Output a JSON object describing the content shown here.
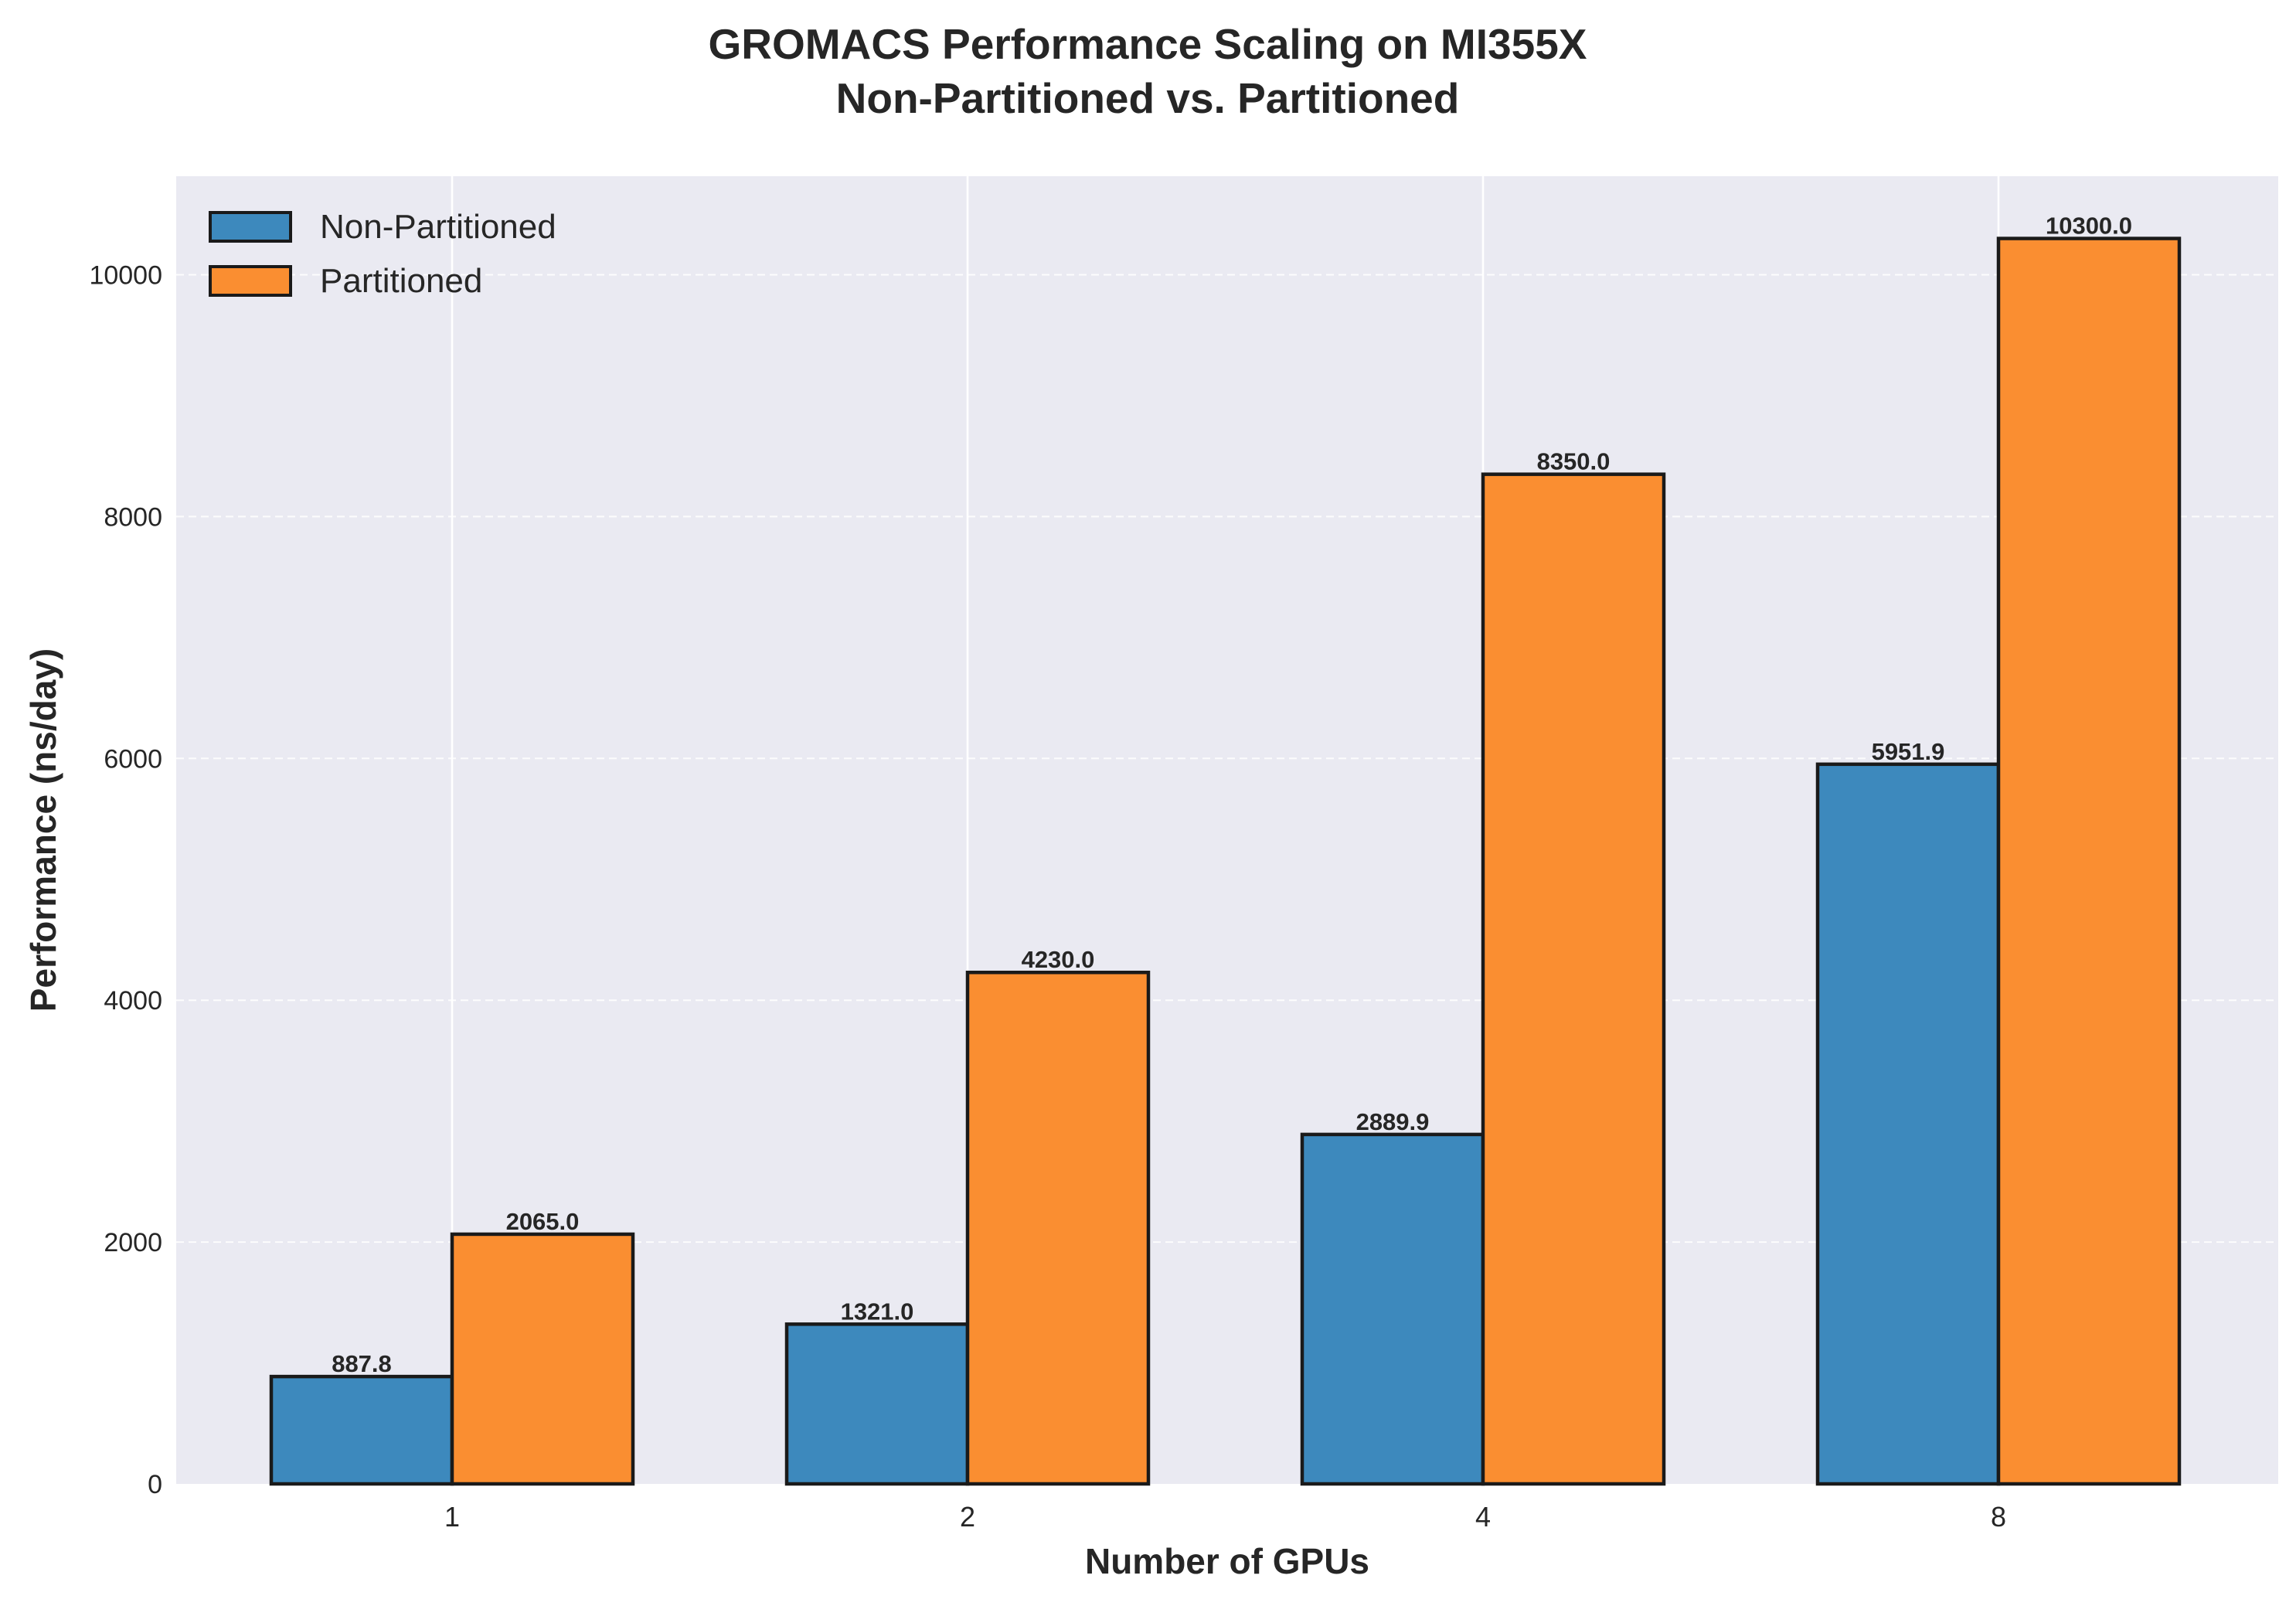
{
  "chart_data": {
    "type": "bar",
    "title_line1": "GROMACS Performance Scaling on MI355X",
    "title_line2": "Non-Partitioned vs. Partitioned",
    "xlabel": "Number of GPUs",
    "ylabel": "Performance (ns/day)",
    "categories": [
      "1",
      "2",
      "4",
      "8"
    ],
    "series": [
      {
        "name": "Non-Partitioned",
        "color": "#3d89bd",
        "values": [
          887.8,
          1321.0,
          2889.9,
          5951.9
        ],
        "labels": [
          "887.8",
          "1321.0",
          "2889.9",
          "5951.9"
        ]
      },
      {
        "name": "Partitioned",
        "color": "#fa8e31",
        "values": [
          2065.0,
          4230.0,
          8350.0,
          10300.0
        ],
        "labels": [
          "2065.0",
          "4230.0",
          "8350.0",
          "10300.0"
        ]
      }
    ],
    "ylim": [
      0,
      10815
    ],
    "yticks": [
      0,
      2000,
      4000,
      6000,
      8000,
      10000
    ],
    "ytick_labels": [
      "0",
      "2000",
      "4000",
      "6000",
      "8000",
      "10000"
    ],
    "grid": true,
    "legend_position": "top-left",
    "colors": {
      "plot_background": "#eaeaf2",
      "bar_edge": "#1a1a1a",
      "text": "#262626"
    }
  }
}
